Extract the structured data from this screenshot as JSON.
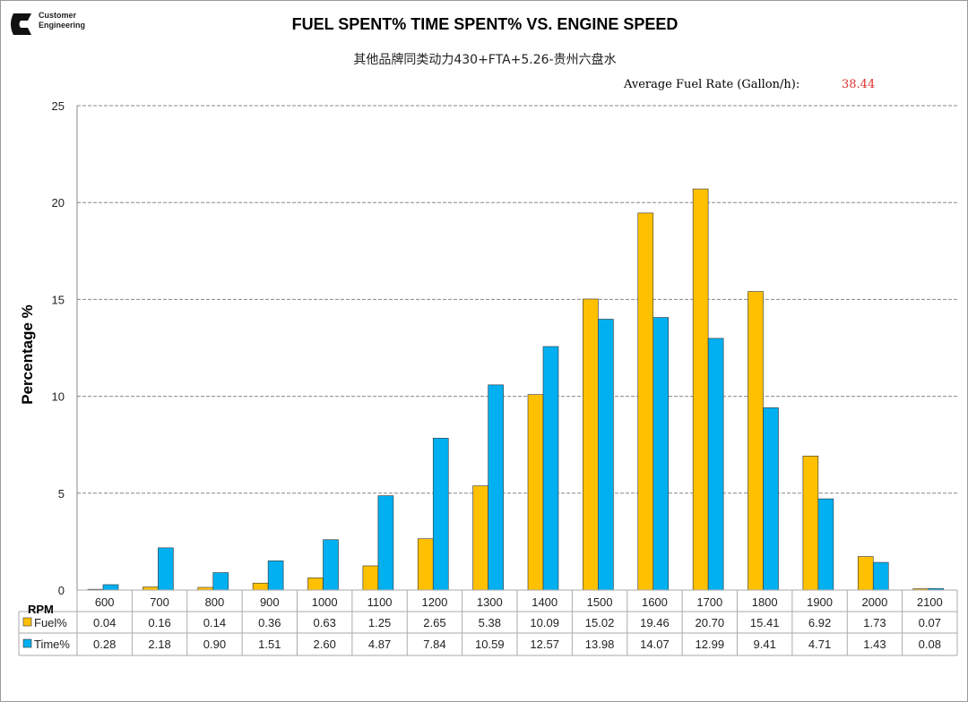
{
  "logo": {
    "text_line1": "Customer",
    "text_line2": "Engineering",
    "brand": "Cummins"
  },
  "chart_data": {
    "type": "bar",
    "title": "FUEL SPENT% TIME SPENT% VS. ENGINE SPEED",
    "subtitle": "其他品牌同类动力430+FTA+5.26-贵州六盘水",
    "annotation_label": "Average Fuel Rate (Gallon/h):",
    "annotation_value": "38.44",
    "xlabel": "RPM",
    "ylabel": "Percentage %",
    "ylim": [
      0,
      25
    ],
    "yticks": [
      0,
      5,
      10,
      15,
      20,
      25
    ],
    "grid": true,
    "categories": [
      "600",
      "700",
      "800",
      "900",
      "1000",
      "1100",
      "1200",
      "1300",
      "1400",
      "1500",
      "1600",
      "1700",
      "1800",
      "1900",
      "2000",
      "2100"
    ],
    "series": [
      {
        "name": "Fuel%",
        "color": "#FFC000",
        "values": [
          0.04,
          0.16,
          0.14,
          0.36,
          0.63,
          1.25,
          2.65,
          5.38,
          10.09,
          15.02,
          19.46,
          20.7,
          15.41,
          6.92,
          1.73,
          0.07
        ]
      },
      {
        "name": "Time%",
        "color": "#00B0F0",
        "values": [
          0.28,
          2.18,
          0.9,
          1.51,
          2.6,
          4.87,
          7.84,
          10.59,
          12.57,
          13.98,
          14.07,
          12.99,
          9.41,
          4.71,
          1.43,
          0.08
        ]
      }
    ],
    "legend": "data-table"
  }
}
